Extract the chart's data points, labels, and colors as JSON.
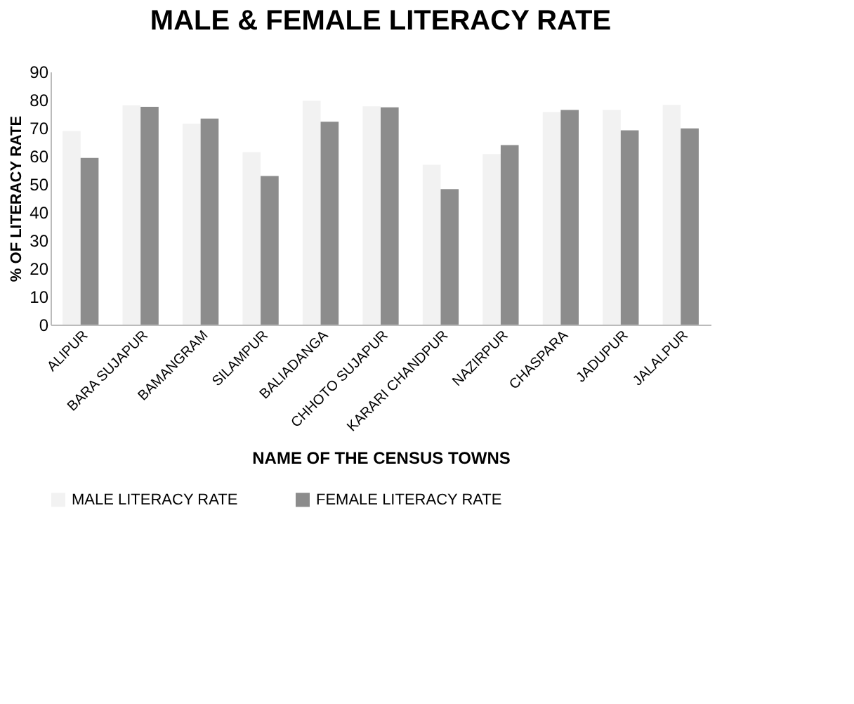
{
  "chart_data": {
    "type": "bar",
    "title": "MALE & FEMALE LITERACY RATE",
    "xlabel": "NAME  OF  THE  CENSUS  TOWNS",
    "ylabel": "% OF  LITERACY RATE",
    "categories": [
      "ALIPUR",
      "BARA SUJAPUR",
      "BAMANGRAM",
      "SILAMPUR",
      "BALIADANGA",
      "CHHOTO SUJAPUR",
      "KARARI CHANDPUR",
      "NAZIRPUR",
      "CHASPARA",
      "JADUPUR",
      "JALALPUR"
    ],
    "series": [
      {
        "name": "MALE LITERACY RATE",
        "color": "#f2f2f2",
        "values": [
          68.9,
          78,
          71.5,
          61.4,
          79.6,
          77.7,
          56.9,
          60.7,
          75.6,
          76.4,
          78.2
        ]
      },
      {
        "name": "FEMALE LITERACY RATE",
        "color": "#8c8c8c",
        "values": [
          59.3,
          77.5,
          73.3,
          52.9,
          72.2,
          77.3,
          48.2,
          63.9,
          76.4,
          69.1,
          69.8
        ]
      }
    ],
    "ylim": [
      0,
      90
    ],
    "yticks": [
      0,
      10,
      20,
      30,
      40,
      50,
      60,
      70,
      80,
      90
    ],
    "grid": false,
    "legend": "bottom"
  }
}
